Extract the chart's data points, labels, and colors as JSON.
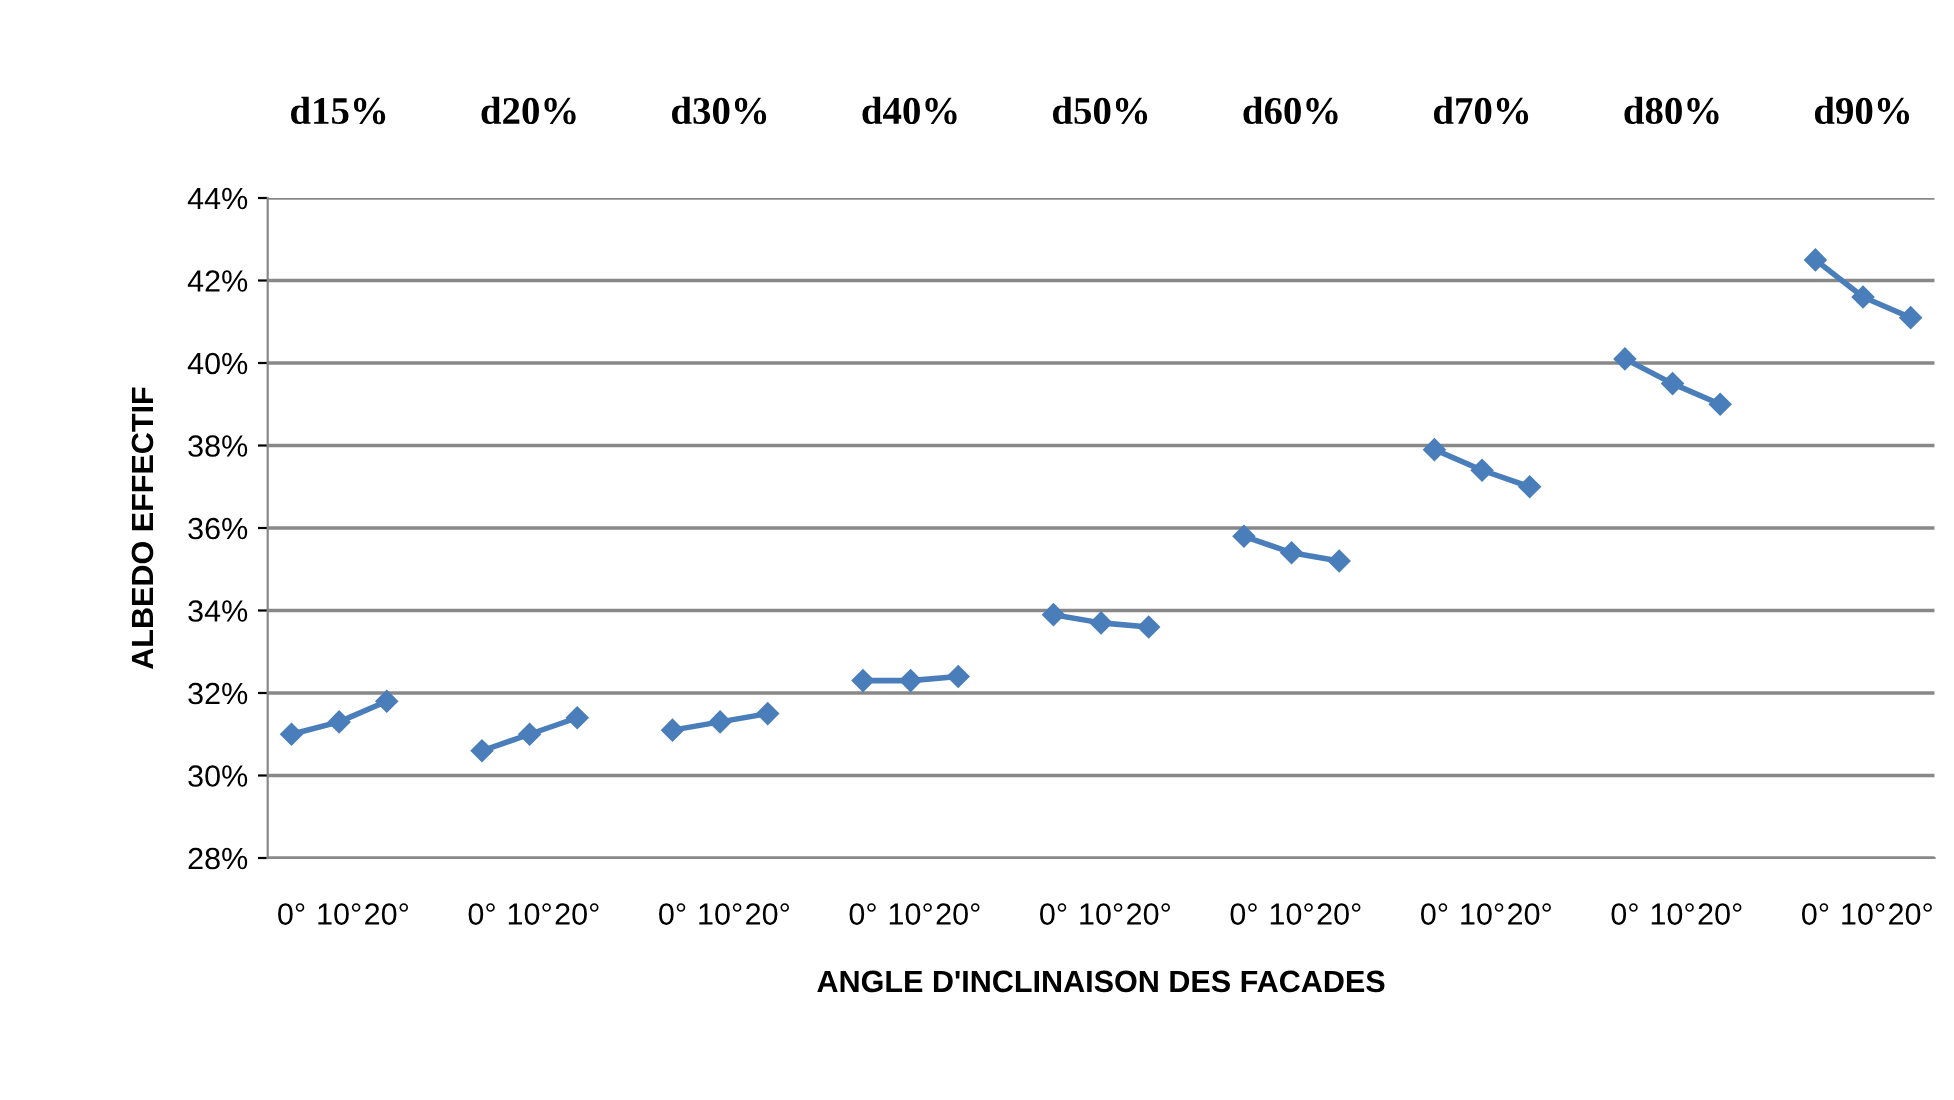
{
  "chart_data": {
    "type": "line",
    "xlabel": "ANGLE D'INCLINAISON DES FACADES",
    "ylabel": "ALBEDO EFFECTIF",
    "categories": [
      "0°",
      "10°",
      "20°",
      null,
      "0°",
      "10°",
      "20°",
      null,
      "0°",
      "10°",
      "20°",
      null,
      "0°",
      "10°",
      "20°",
      null,
      "0°",
      "10°",
      "20°",
      null,
      "0°",
      "10°",
      "20°",
      null,
      "0°",
      "10°",
      "20°",
      null,
      "0°",
      "10°",
      "20°",
      null,
      "0°",
      "10°",
      "20°"
    ],
    "series": [
      {
        "color": "#4a7ebb",
        "values": [
          31.0,
          31.3,
          31.8,
          null,
          30.6,
          31.0,
          31.4,
          null,
          31.1,
          31.3,
          31.5,
          null,
          32.3,
          32.3,
          32.4,
          null,
          33.9,
          33.7,
          33.6,
          null,
          35.8,
          35.4,
          35.2,
          null,
          37.9,
          37.4,
          37.0,
          null,
          40.1,
          39.5,
          39.0,
          null,
          42.5,
          41.6,
          41.1
        ]
      }
    ],
    "ylim": [
      28,
      44
    ],
    "yticks": [
      {
        "value": 28,
        "label": "28%"
      },
      {
        "value": 30,
        "label": "30%"
      },
      {
        "value": 32,
        "label": "32%"
      },
      {
        "value": 34,
        "label": "34%"
      },
      {
        "value": 36,
        "label": "36%"
      },
      {
        "value": 38,
        "label": "38%"
      },
      {
        "value": 40,
        "label": "40%"
      },
      {
        "value": 42,
        "label": "42%"
      },
      {
        "value": 44,
        "label": "44%"
      }
    ],
    "annotations": [
      "d15%",
      "d20%",
      "d30%",
      "d40%",
      "d50%",
      "d60%",
      "d70%",
      "d80%",
      "d90%"
    ],
    "grid": "y",
    "legend": false,
    "marker": "diamond",
    "line_style": "solid"
  }
}
